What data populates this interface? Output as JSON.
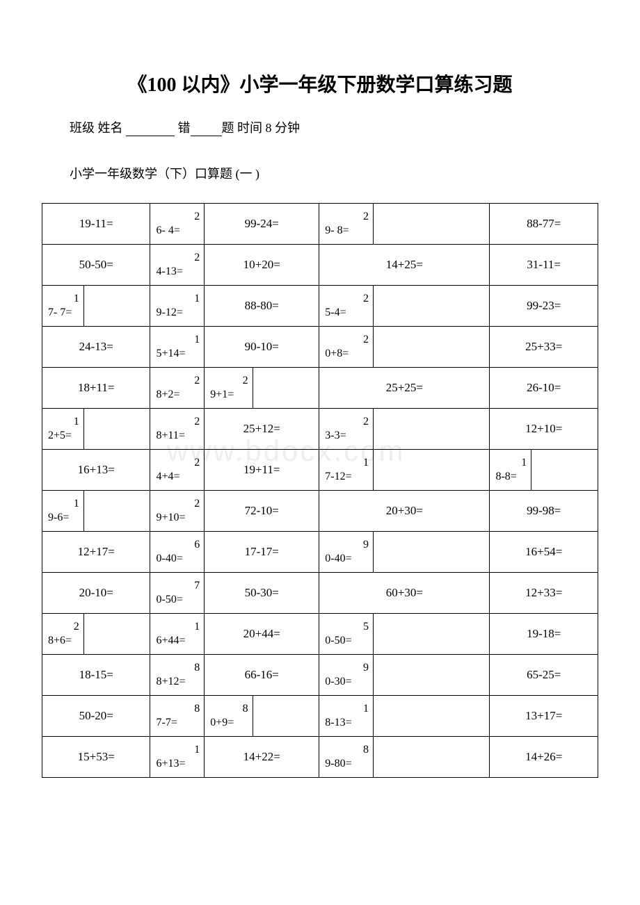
{
  "title": "《100 以内》小学一年级下册数学口算练习题",
  "header": {
    "class_label": "班级",
    "name_label": "姓名",
    "wrong_prefix": "错",
    "wrong_suffix": "题",
    "time_label": "时间 8 分钟"
  },
  "subtitle": "小学一年级数学（下）口算题 (一 )",
  "watermark": "www.bdocx.com",
  "table": {
    "border_color": "#000000",
    "background_color": "#ffffff",
    "font_size": 17,
    "rows": [
      {
        "c1": "19-11=",
        "c2": {
          "top": "2",
          "bot": "6- 4="
        },
        "c3": "99-24=",
        "c4": {
          "top": "2",
          "bot": "9- 8="
        },
        "c4_span": 1,
        "c5_blank": true,
        "c5": "88-77="
      },
      {
        "c1": "50-50=",
        "c2": {
          "top": "2",
          "bot": "4-13="
        },
        "c3": "10+20=",
        "c4_full": "14+25=",
        "c5": "31-11="
      },
      {
        "c1": {
          "top": "1",
          "bot": "7- 7="
        },
        "c1_split": true,
        "c2": {
          "top": "1",
          "bot": "9-12="
        },
        "c3": "88-80=",
        "c4": {
          "top": "2",
          "bot": "5-4="
        },
        "c4_span": 1,
        "c5_blank": true,
        "c5": "99-23="
      },
      {
        "c1": "24-13=",
        "c2": {
          "top": "1",
          "bot": "5+14="
        },
        "c3": "90-10=",
        "c4": {
          "top": "2",
          "bot": "0+8="
        },
        "c4_span": 1,
        "c5_blank": true,
        "c5": "25+33="
      },
      {
        "c1": "18+11=",
        "c2": {
          "top": "2",
          "bot": "8+2="
        },
        "c3": {
          "top": "2",
          "bot": "9+1="
        },
        "c3_split": true,
        "c4_full": "25+25=",
        "c5": "26-10="
      },
      {
        "c1": {
          "top": "1",
          "bot": "2+5="
        },
        "c1_split": true,
        "c2": {
          "top": "2",
          "bot": "8+11="
        },
        "c3": "25+12=",
        "c4": {
          "top": "2",
          "bot": "3-3="
        },
        "c4_span": 1,
        "c5_blank": true,
        "c5": "12+10="
      },
      {
        "c1": "16+13=",
        "c2": {
          "top": "2",
          "bot": "4+4="
        },
        "c3": "19+11=",
        "c4": {
          "top": "1",
          "bot": "7-12="
        },
        "c4_span": 1,
        "c5_blank": true,
        "c5": {
          "top": "1",
          "bot": "8-8="
        },
        "c5_split": true
      },
      {
        "c1": {
          "top": "1",
          "bot": "9-6="
        },
        "c1_split": true,
        "c2": {
          "top": "2",
          "bot": "9+10="
        },
        "c3": "72-10=",
        "c4_full": "20+30=",
        "c5": "99-98="
      },
      {
        "c1": "12+17=",
        "c2": {
          "top": "6",
          "bot": "0-40="
        },
        "c3": "17-17=",
        "c4": {
          "top": "9",
          "bot": "0-40="
        },
        "c4_span": 1,
        "c5_blank": true,
        "c5": "16+54="
      },
      {
        "c1": "20-10=",
        "c2": {
          "top": "7",
          "bot": "0-50="
        },
        "c3": "50-30=",
        "c4_full": "60+30=",
        "c5": "12+33="
      },
      {
        "c1": {
          "top": "2",
          "bot": "8+6="
        },
        "c1_split": true,
        "c2": {
          "top": "1",
          "bot": "6+44="
        },
        "c3": "20+44=",
        "c4": {
          "top": "5",
          "bot": "0-50="
        },
        "c4_span": 1,
        "c5_blank": true,
        "c5": "19-18="
      },
      {
        "c1": "18-15=",
        "c2": {
          "top": "8",
          "bot": "8+12="
        },
        "c3": "66-16=",
        "c4": {
          "top": "9",
          "bot": "0-30="
        },
        "c4_span": 1,
        "c5_blank": true,
        "c5": "65-25="
      },
      {
        "c1": "50-20=",
        "c2": {
          "top": "8",
          "bot": "7-7="
        },
        "c3": {
          "top": "8",
          "bot": "0+9="
        },
        "c3_split": true,
        "c4": {
          "top": "1",
          "bot": "8-13="
        },
        "c4_span": 1,
        "c5_blank": true,
        "c5": "13+17="
      },
      {
        "c1": "15+53=",
        "c2": {
          "top": "1",
          "bot": "6+13="
        },
        "c3": "14+22=",
        "c4": {
          "top": "8",
          "bot": "9-80="
        },
        "c4_span": 1,
        "c5_blank": true,
        "c5": "14+26="
      }
    ]
  }
}
